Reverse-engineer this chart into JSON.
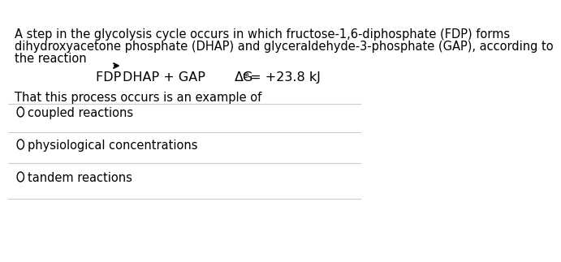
{
  "background_color": "#ffffff",
  "text_color": "#000000",
  "line_color": "#cccccc",
  "paragraph": "A step in the glycolysis cycle occurs in which fructose-1,6-diphosphate (FDP) forms\ndihydroxyacetone phosphate (DHAP) and glyceraldehyde-3-phosphate (GAP), according to\nthe reaction",
  "reaction_left": "FDP —→DHAP + GAP",
  "reaction_right": "ΔG⁰ = +23.8 kJ",
  "sub_question": "That this process occurs is an example of",
  "options": [
    "coupled reactions",
    "physiological concentrations",
    "tandem reactions"
  ],
  "font_size_paragraph": 10.5,
  "font_size_reaction": 11.5,
  "font_size_options": 10.5,
  "font_size_subq": 10.5
}
